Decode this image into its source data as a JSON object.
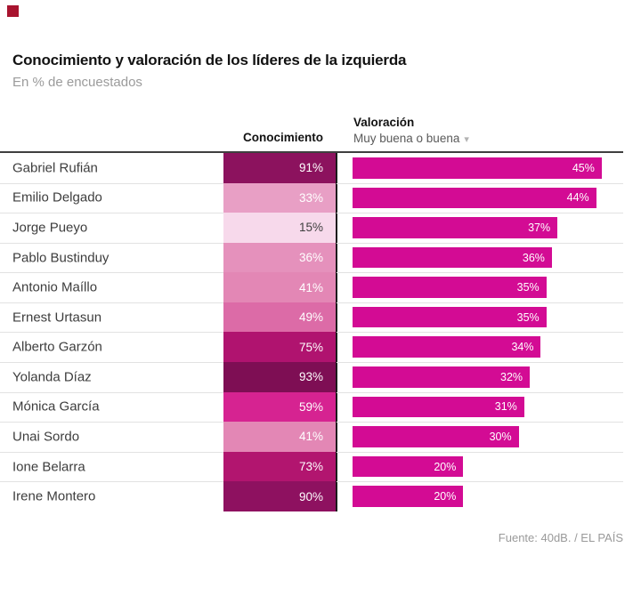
{
  "brand": {
    "logo_square_color": "#a8142f"
  },
  "header": {
    "title": "Conocimiento y valoración de los líderes de la izquierda",
    "subtitle": "En % de encuestados"
  },
  "table_header": {
    "col1": "Conocimiento",
    "col2_title": "Valoración",
    "col2_subtitle": "Muy buena o buena",
    "sort_icon": "▾"
  },
  "chart_data": {
    "type": "bar",
    "title": "Conocimiento y valoración de los líderes de la izquierda",
    "subtitle": "En % de encuestados",
    "unit": "%",
    "categories": [
      "Gabriel Rufián",
      "Emilio Delgado",
      "Jorge Pueyo",
      "Pablo Bustinduy",
      "Antonio Maíllo",
      "Ernest Urtasun",
      "Alberto Garzón",
      "Yolanda Díaz",
      "Mónica García",
      "Unai Sordo",
      "Ione Belarra",
      "Irene Montero"
    ],
    "series": [
      {
        "name": "Conocimiento",
        "display": "heatmap",
        "values": [
          91,
          33,
          15,
          36,
          41,
          49,
          75,
          93,
          59,
          41,
          73,
          90
        ],
        "cell_colors": [
          "#8c125e",
          "#e89fc5",
          "#f7d9eb",
          "#e591bc",
          "#e387b5",
          "#dc6ba7",
          "#b0136f",
          "#7e0e54",
          "#d62391",
          "#e387b5",
          "#b2156f",
          "#8e1160"
        ],
        "label_colors": [
          "#ffffff",
          "#ffffff",
          "#3f3f3f",
          "#ffffff",
          "#ffffff",
          "#ffffff",
          "#ffffff",
          "#ffffff",
          "#ffffff",
          "#ffffff",
          "#ffffff",
          "#ffffff"
        ]
      },
      {
        "name": "Valoración: Muy buena o buena",
        "display": "bar",
        "color": "#d30b94",
        "values": [
          45,
          44,
          37,
          36,
          35,
          35,
          34,
          32,
          31,
          30,
          20,
          20
        ]
      }
    ],
    "xlim": [
      0,
      49
    ],
    "value_labels": "inside-end",
    "grid": false,
    "legend_position": "none"
  },
  "footer": {
    "source": "Fuente: 40dB. / EL PAÍS"
  }
}
